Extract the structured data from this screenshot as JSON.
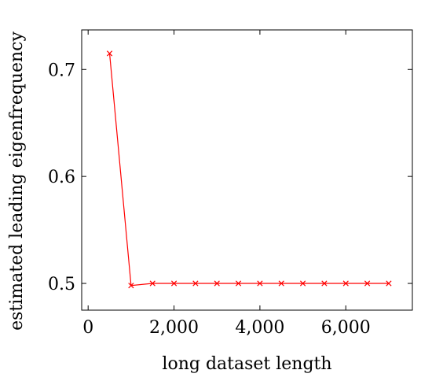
{
  "chart_data": {
    "type": "line",
    "xlabel": "long dataset length",
    "ylabel": "estimated leading eigenfrequency",
    "xlim": [
      -150,
      7550
    ],
    "ylim": [
      0.475,
      0.737
    ],
    "x_ticks": [
      0,
      2000,
      4000,
      6000
    ],
    "x_tick_labels": [
      "0",
      "2,000",
      "4,000",
      "6,000"
    ],
    "y_ticks": [
      0.5,
      0.6,
      0.7
    ],
    "y_tick_labels": [
      "0.5",
      "0.6",
      "0.7"
    ],
    "grid": false,
    "series": [
      {
        "color": "#ff0000",
        "marker": "x",
        "x": [
          500,
          1000,
          1500,
          2000,
          2500,
          3000,
          3500,
          4000,
          4500,
          5000,
          5500,
          6000,
          6500,
          7000
        ],
        "y": [
          0.715,
          0.498,
          0.5,
          0.5,
          0.5,
          0.5,
          0.5,
          0.5,
          0.5,
          0.5,
          0.5,
          0.5,
          0.5,
          0.5
        ]
      }
    ]
  }
}
